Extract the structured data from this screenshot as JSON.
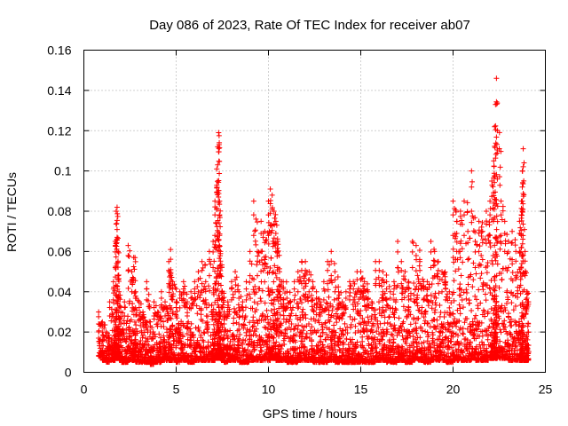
{
  "chart_data": {
    "type": "scatter",
    "title": "Day 086 of 2023, Rate Of TEC Index for receiver ab07",
    "xlabel": "GPS time / hours",
    "ylabel": "ROTI / TECUs",
    "xlim": [
      0,
      25
    ],
    "ylim": [
      0,
      0.16
    ],
    "x_ticks": [
      0,
      5,
      10,
      15,
      20,
      25
    ],
    "x_tick_labels": [
      "0",
      "5",
      "10",
      "15",
      "20",
      "25"
    ],
    "y_ticks": [
      0,
      0.02,
      0.04,
      0.06,
      0.08,
      0.1,
      0.12,
      0.14,
      0.16
    ],
    "y_tick_labels": [
      "0",
      "0.02",
      "0.04",
      "0.06",
      "0.08",
      "0.1",
      "0.12",
      "0.14",
      "0.16"
    ],
    "grid": true,
    "legend": "none",
    "marker": "+",
    "color": "#ff0000",
    "series": [
      {
        "x": [
          0.8,
          1.0,
          1.2,
          1.4,
          1.6,
          1.7,
          1.75,
          1.8,
          1.85,
          1.9,
          2.0,
          2.2,
          2.4,
          2.6,
          2.7,
          2.8,
          3.0,
          3.2,
          3.4,
          3.6,
          3.8,
          4.0,
          4.2,
          4.4,
          4.6,
          4.7,
          4.8,
          5.0,
          5.2,
          5.4,
          5.6,
          5.8,
          6.0,
          6.2,
          6.4,
          6.6,
          6.8,
          7.0,
          7.1,
          7.2,
          7.25,
          7.3,
          7.35,
          7.4,
          7.5,
          7.6,
          7.8,
          8.0,
          8.2,
          8.4,
          8.6,
          8.8,
          9.0,
          9.2,
          9.4,
          9.6,
          9.8,
          10.0,
          10.1,
          10.2,
          10.3,
          10.4,
          10.5,
          10.6,
          10.8,
          11.0,
          11.2,
          11.4,
          11.6,
          11.8,
          12.0,
          12.2,
          12.4,
          12.6,
          12.8,
          13.0,
          13.2,
          13.4,
          13.6,
          13.8,
          14.0,
          14.2,
          14.4,
          14.6,
          14.8,
          15.0,
          15.2,
          15.4,
          15.6,
          15.8,
          16.0,
          16.2,
          16.4,
          16.6,
          16.8,
          17.0,
          17.2,
          17.4,
          17.6,
          17.8,
          18.0,
          18.2,
          18.4,
          18.6,
          18.8,
          19.0,
          19.2,
          19.4,
          19.6,
          19.8,
          20.0,
          20.2,
          20.4,
          20.6,
          20.8,
          21.0,
          21.2,
          21.4,
          21.6,
          21.8,
          22.0,
          22.1,
          22.2,
          22.25,
          22.3,
          22.35,
          22.4,
          22.6,
          22.8,
          23.0,
          23.2,
          23.4,
          23.6,
          23.7,
          23.75,
          23.8,
          23.9,
          24.0
        ],
        "y": [
          0.03,
          0.025,
          0.02,
          0.035,
          0.045,
          0.065,
          0.08,
          0.082,
          0.06,
          0.04,
          0.03,
          0.035,
          0.063,
          0.05,
          0.057,
          0.04,
          0.035,
          0.03,
          0.045,
          0.025,
          0.035,
          0.03,
          0.04,
          0.035,
          0.055,
          0.061,
          0.045,
          0.035,
          0.04,
          0.045,
          0.035,
          0.04,
          0.045,
          0.05,
          0.055,
          0.045,
          0.06,
          0.065,
          0.085,
          0.101,
          0.112,
          0.119,
          0.085,
          0.06,
          0.04,
          0.03,
          0.035,
          0.045,
          0.05,
          0.04,
          0.035,
          0.045,
          0.06,
          0.085,
          0.06,
          0.075,
          0.07,
          0.085,
          0.091,
          0.088,
          0.08,
          0.075,
          0.065,
          0.05,
          0.045,
          0.04,
          0.035,
          0.045,
          0.05,
          0.055,
          0.055,
          0.05,
          0.045,
          0.04,
          0.035,
          0.045,
          0.055,
          0.06,
          0.05,
          0.04,
          0.035,
          0.04,
          0.045,
          0.045,
          0.05,
          0.05,
          0.045,
          0.04,
          0.035,
          0.055,
          0.055,
          0.05,
          0.045,
          0.04,
          0.045,
          0.065,
          0.055,
          0.05,
          0.045,
          0.065,
          0.063,
          0.055,
          0.045,
          0.045,
          0.065,
          0.06,
          0.055,
          0.05,
          0.045,
          0.04,
          0.085,
          0.075,
          0.08,
          0.085,
          0.07,
          0.1,
          0.065,
          0.075,
          0.07,
          0.08,
          0.085,
          0.095,
          0.105,
          0.122,
          0.133,
          0.146,
          0.12,
          0.085,
          0.075,
          0.065,
          0.07,
          0.06,
          0.075,
          0.085,
          0.1,
          0.111,
          0.06,
          0.04
        ],
        "min_y": [
          0.008,
          0.006,
          0.005,
          0.006,
          0.006,
          0.007,
          0.007,
          0.007,
          0.007,
          0.006,
          0.005,
          0.005,
          0.006,
          0.006,
          0.006,
          0.005,
          0.005,
          0.005,
          0.005,
          0.004,
          0.005,
          0.005,
          0.006,
          0.006,
          0.006,
          0.006,
          0.006,
          0.005,
          0.006,
          0.006,
          0.005,
          0.005,
          0.006,
          0.006,
          0.006,
          0.006,
          0.006,
          0.006,
          0.007,
          0.007,
          0.007,
          0.007,
          0.007,
          0.006,
          0.006,
          0.005,
          0.006,
          0.006,
          0.006,
          0.005,
          0.005,
          0.005,
          0.006,
          0.006,
          0.006,
          0.006,
          0.006,
          0.006,
          0.007,
          0.007,
          0.007,
          0.006,
          0.006,
          0.006,
          0.006,
          0.005,
          0.005,
          0.005,
          0.006,
          0.006,
          0.006,
          0.006,
          0.005,
          0.005,
          0.005,
          0.005,
          0.006,
          0.006,
          0.005,
          0.005,
          0.005,
          0.005,
          0.005,
          0.005,
          0.005,
          0.005,
          0.005,
          0.005,
          0.005,
          0.006,
          0.006,
          0.006,
          0.005,
          0.005,
          0.005,
          0.006,
          0.006,
          0.005,
          0.005,
          0.006,
          0.006,
          0.006,
          0.005,
          0.005,
          0.006,
          0.006,
          0.006,
          0.006,
          0.005,
          0.005,
          0.006,
          0.006,
          0.006,
          0.006,
          0.006,
          0.007,
          0.006,
          0.006,
          0.006,
          0.006,
          0.007,
          0.007,
          0.007,
          0.007,
          0.007,
          0.007,
          0.007,
          0.007,
          0.007,
          0.006,
          0.006,
          0.006,
          0.006,
          0.006,
          0.006,
          0.006,
          0.006,
          0.006,
          0.006
        ]
      }
    ]
  }
}
